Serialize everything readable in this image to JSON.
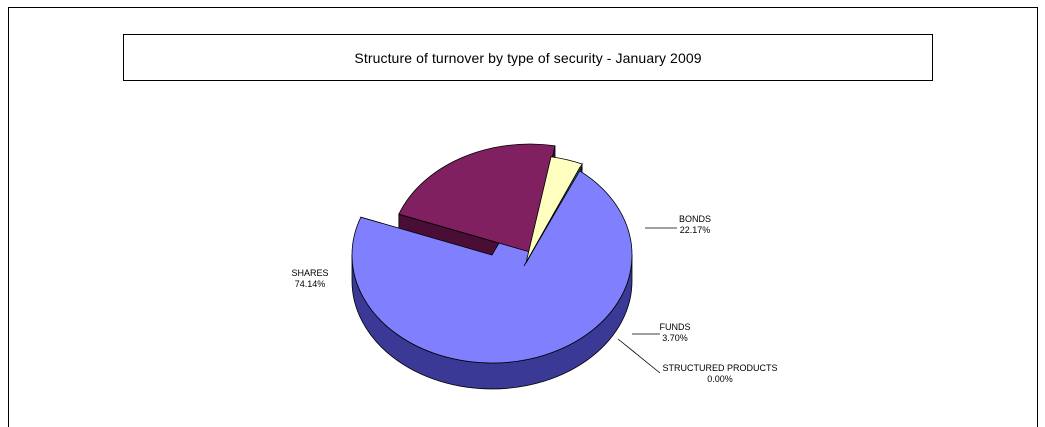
{
  "chart_data": {
    "type": "pie",
    "title": "Structure of turnover by type of security - January 2009",
    "slices": [
      {
        "name": "SHARES",
        "value": 74.14,
        "label": "74.14%",
        "color": "#8080FF",
        "side_color": "#3A3A96"
      },
      {
        "name": "BONDS",
        "value": 22.17,
        "label": "22.17%",
        "color": "#802060",
        "side_color": "#4A0E36"
      },
      {
        "name": "FUNDS",
        "value": 3.7,
        "label": "3.70%",
        "color": "#FFFFC0",
        "side_color": "#A8A878"
      },
      {
        "name": "STRUCTURED PRODUCTS",
        "value": 0.0,
        "label": "0.00%",
        "color": "#2E6E6E",
        "side_color": "#4E7474"
      }
    ],
    "three_d": true,
    "exploded": true,
    "legend": "none",
    "data_labels": "outside with leader lines"
  }
}
